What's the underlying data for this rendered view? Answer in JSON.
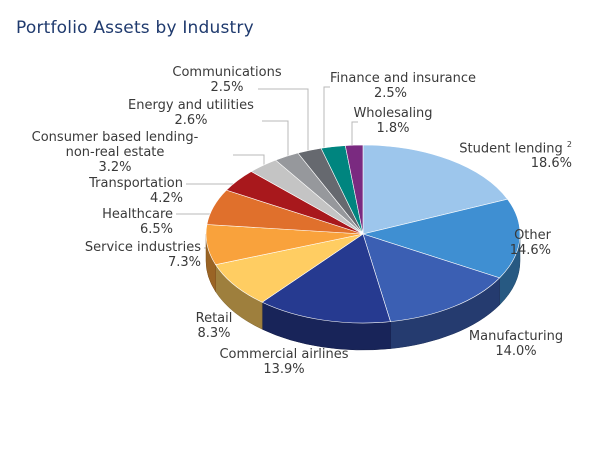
{
  "chart_data": {
    "type": "pie",
    "title": "Portfolio Assets by Industry",
    "start": "top, clockwise",
    "slices": [
      {
        "label": "Student lending",
        "sup": "2",
        "value": 18.6,
        "value_label": "18.6%",
        "color": "#9dc6ec"
      },
      {
        "label": "Other",
        "value": 14.6,
        "value_label": "14.6%",
        "color": "#3f8fd2"
      },
      {
        "label": "Manufacturing",
        "value": 14.0,
        "value_label": "14.0%",
        "color": "#3b5fb3"
      },
      {
        "label": "Commercial airlines",
        "value": 13.9,
        "value_label": "13.9%",
        "color": "#263a90"
      },
      {
        "label": "Retail",
        "value": 8.3,
        "value_label": "8.3%",
        "color": "#ffcd62"
      },
      {
        "label": "Service industries",
        "value": 7.3,
        "value_label": "7.3%",
        "color": "#f9a23c"
      },
      {
        "label": "Healthcare",
        "value": 6.5,
        "value_label": "6.5%",
        "color": "#e0702c"
      },
      {
        "label": "Transportation",
        "value": 4.2,
        "value_label": "4.2%",
        "color": "#a8181c"
      },
      {
        "label": "Consumer based lending-",
        "label2": "non-real estate",
        "value": 3.2,
        "value_label": "3.2%",
        "color": "#c4c4c4"
      },
      {
        "label": "Energy and utilities",
        "value": 2.6,
        "value_label": "2.6%",
        "color": "#96989c"
      },
      {
        "label": "Communications",
        "value": 2.5,
        "value_label": "2.5%",
        "color": "#66696f"
      },
      {
        "label": "Finance and insurance",
        "value": 2.5,
        "value_label": "2.5%",
        "color": "#00857f"
      },
      {
        "label": "Wholesaling",
        "value": 1.8,
        "value_label": "1.8%",
        "color": "#7a2a80"
      }
    ]
  }
}
